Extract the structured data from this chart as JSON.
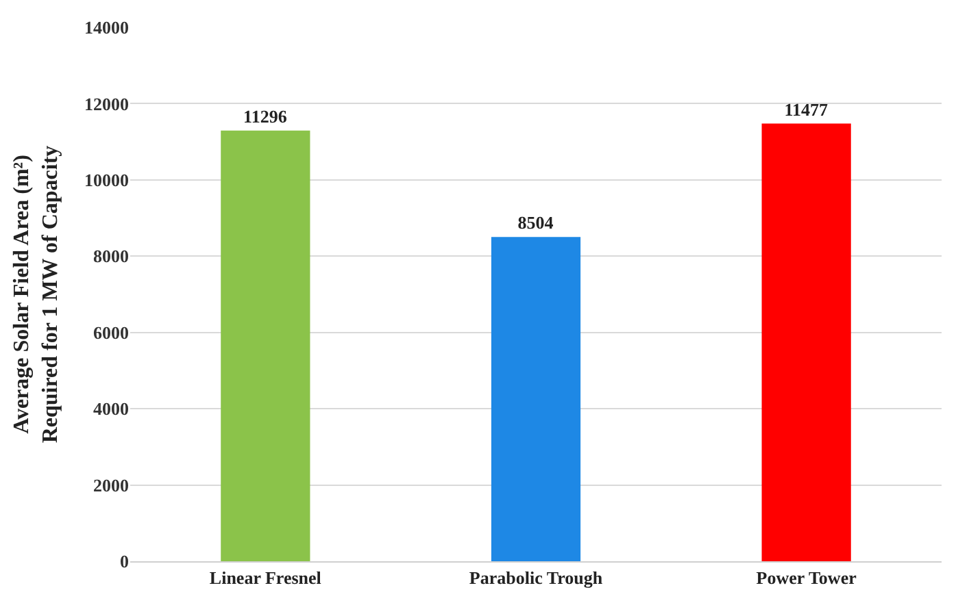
{
  "chart_data": {
    "type": "bar",
    "ylabel": "Average Solar Field Area (m²)\nRequired for 1 MW of Capacity",
    "categories": [
      "Linear Fresnel",
      "Parabolic Trough",
      "Power Tower"
    ],
    "values": [
      11296,
      8504,
      11477
    ],
    "colors": [
      "#8bc34a",
      "#1e88e5",
      "#ff0000"
    ],
    "ylim": [
      0,
      14000
    ],
    "yticks": [
      0,
      2000,
      4000,
      6000,
      8000,
      10000,
      12000,
      14000
    ],
    "grid": "y",
    "data_labels": true
  }
}
